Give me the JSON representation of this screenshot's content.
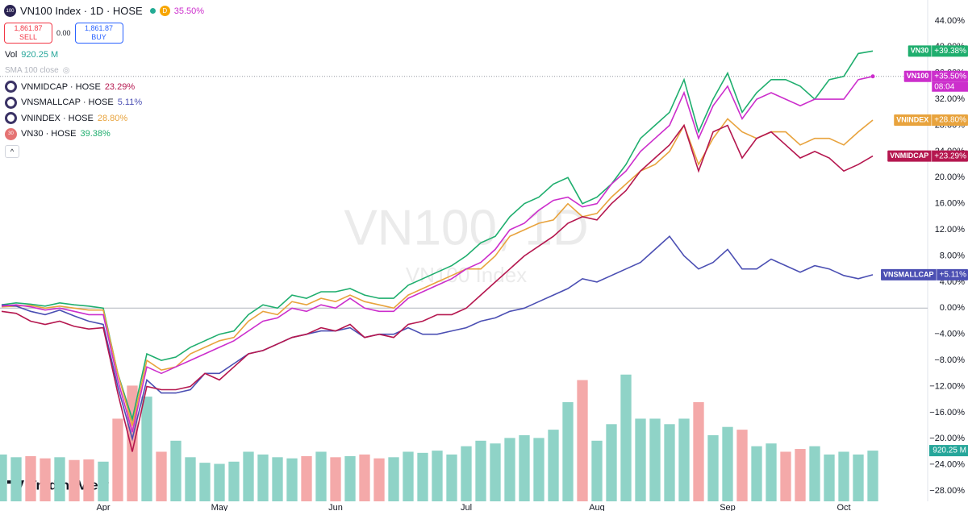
{
  "header": {
    "badge": "100",
    "symbol": "VN100 Index · 1D · HOSE",
    "interval_flag": "D",
    "change": "35.50%",
    "sell_price": "1,861.87",
    "sell": "SELL",
    "spread": "0.00",
    "buy_price": "1,861.87",
    "buy": "BUY",
    "vol_label": "Vol",
    "vol_value": "920.25 M",
    "sma": "SMA 100 close"
  },
  "watermark": {
    "title": "VN100, 1D",
    "subtitle": "VN100 Index"
  },
  "logo": "TradingView",
  "chart_data": {
    "type": "line",
    "categories": [
      null,
      null,
      null,
      null,
      null,
      null,
      null,
      "Apr",
      null,
      null,
      null,
      null,
      null,
      null,
      null,
      "May",
      null,
      null,
      null,
      null,
      null,
      null,
      null,
      "Jun",
      null,
      null,
      null,
      null,
      null,
      null,
      null,
      null,
      "Jul",
      null,
      null,
      null,
      null,
      null,
      null,
      null,
      null,
      "Aug",
      null,
      null,
      null,
      null,
      null,
      null,
      null,
      null,
      "Sep",
      null,
      null,
      null,
      null,
      null,
      null,
      null,
      "Oct",
      null,
      null
    ],
    "ylim": [
      -29.6,
      47.2
    ],
    "yticks": [
      {
        "value": -28,
        "label": "−28.00%"
      },
      {
        "value": -24,
        "label": "−24.00%"
      },
      {
        "value": -20,
        "label": "−20.00%"
      },
      {
        "value": -16,
        "label": "−16.00%"
      },
      {
        "value": -12,
        "label": "−12.00%"
      },
      {
        "value": -8,
        "label": "−8.00%"
      },
      {
        "value": -4,
        "label": "−4.00%"
      },
      {
        "value": 0,
        "label": "0.00%"
      },
      {
        "value": 4,
        "label": "4.00%"
      },
      {
        "value": 8,
        "label": "8.00%"
      },
      {
        "value": 12,
        "label": "12.00%"
      },
      {
        "value": 16,
        "label": "16.00%"
      },
      {
        "value": 20,
        "label": "20.00%"
      },
      {
        "value": 24,
        "label": "24.00%"
      },
      {
        "value": 28,
        "label": "28.00%"
      },
      {
        "value": 32,
        "label": "32.00%"
      },
      {
        "value": 36,
        "label": "36.00%"
      },
      {
        "value": 40,
        "label": "40.00%"
      },
      {
        "value": 44,
        "label": "44.00%"
      }
    ],
    "series": [
      {
        "name": "VN100",
        "color": "#cc2ecc",
        "tag_label": "+35.50%",
        "tag_time": "08:04",
        "values": [
          0.3,
          0.5,
          0.2,
          -0.3,
          0,
          -0.5,
          -1.0,
          -1.0,
          -11,
          -19,
          -9,
          -10,
          -9,
          -8,
          -7,
          -6,
          -5,
          -3.5,
          -2,
          -1.5,
          0,
          -0.5,
          0.5,
          0,
          1.5,
          0,
          -0.5,
          -0.5,
          1.5,
          2.5,
          3.5,
          4.5,
          6,
          7,
          9,
          12,
          13,
          15,
          16.5,
          17,
          15.5,
          16,
          19,
          21,
          24,
          26,
          28,
          33,
          26,
          31,
          34,
          29,
          32,
          33,
          32,
          31,
          32,
          32,
          32,
          35,
          35.5
        ]
      },
      {
        "name": "VNMIDCAP",
        "legend_label": "VNMIDCAP · HOSE",
        "value_label": "23.29%",
        "tag_label": "+23.29%",
        "color": "#b5174f",
        "values": [
          -0.5,
          -0.8,
          -2.0,
          -2.5,
          -2.0,
          -2.8,
          -3.2,
          -3.0,
          -13,
          -22,
          -12,
          -12.5,
          -12.5,
          -12,
          -10,
          -11,
          -9,
          -7,
          -6.5,
          -5.5,
          -4.5,
          -4,
          -3,
          -3.5,
          -2.5,
          -4.5,
          -4,
          -4.5,
          -2.5,
          -2,
          -1,
          -1,
          0,
          2,
          4,
          6,
          8,
          9.5,
          11,
          13,
          14,
          13.5,
          16,
          18,
          21,
          23,
          25,
          28,
          21,
          27,
          28,
          23,
          26,
          27,
          25,
          23,
          24,
          23,
          21,
          22,
          23.29
        ]
      },
      {
        "name": "VNSMALLCAP",
        "legend_label": "VNSMALLCAP · HOSE",
        "value_label": "5.11%",
        "tag_label": "+5.11%",
        "color": "#4b4fb3",
        "values": [
          0.5,
          0.3,
          -0.5,
          -1.0,
          -0.3,
          -1.2,
          -2.0,
          -2.5,
          -12,
          -20,
          -11,
          -13,
          -13,
          -12.5,
          -10,
          -10,
          -8.5,
          -7,
          -6.5,
          -5.5,
          -4.5,
          -4,
          -3.5,
          -3.5,
          -3,
          -4.5,
          -4,
          -4,
          -3,
          -4,
          -4,
          -3.5,
          -3,
          -2,
          -1.5,
          -0.5,
          0,
          1,
          2,
          3,
          4.5,
          4,
          5,
          6,
          7,
          9,
          11,
          8,
          6,
          7,
          9,
          6,
          6,
          7.5,
          6.5,
          5.5,
          6.5,
          6,
          5,
          4.5,
          5.11
        ]
      },
      {
        "name": "VNINDEX",
        "legend_label": "VNINDEX · HOSE",
        "value_label": "28.80%",
        "tag_label": "+28.80%",
        "color": "#e8a33d",
        "values": [
          0.2,
          0.3,
          0.4,
          0,
          0.3,
          0,
          -0.3,
          -0.3,
          -10,
          -18,
          -8,
          -9.5,
          -9,
          -7,
          -6,
          -5,
          -4.5,
          -2,
          -0.5,
          -1,
          1,
          0.5,
          1.5,
          1,
          2,
          1,
          0.5,
          0,
          2,
          3,
          4,
          5,
          6,
          6,
          8,
          11,
          12,
          13,
          13.5,
          16,
          14,
          14.5,
          17,
          19,
          21,
          22,
          24,
          28,
          22,
          26,
          29,
          27,
          26,
          27,
          27,
          25,
          26,
          26,
          25,
          27,
          28.8
        ]
      },
      {
        "name": "VN30",
        "legend_label": "VN30 · HOSE",
        "value_label": "39.38%",
        "tag_label": "+39.38%",
        "badge": "30",
        "color": "#1fae6e",
        "values": [
          0.5,
          0.8,
          0.6,
          0.3,
          0.8,
          0.5,
          0.3,
          0,
          -10,
          -17,
          -7,
          -8,
          -7.5,
          -6,
          -5,
          -4,
          -3.5,
          -1,
          0.5,
          0,
          2,
          1.5,
          2.5,
          2.5,
          3,
          2,
          1.5,
          1.5,
          3.5,
          4.5,
          5.5,
          6.5,
          8,
          10,
          11,
          14,
          16,
          17,
          19,
          20,
          16,
          17,
          19,
          22,
          26,
          28,
          30,
          35,
          27,
          32,
          36,
          30,
          33,
          35,
          35,
          34,
          32,
          35,
          35.5,
          39,
          39.38
        ]
      }
    ],
    "volume": {
      "ylim": [
        0,
        4300
      ],
      "up_color": "#8fd3c7",
      "down_color": "#f4a9a9",
      "tag_color": "#26a69a",
      "last_label": "920.25 M",
      "values": [
        850,
        800,
        820,
        780,
        800,
        750,
        760,
        720,
        1500,
        2100,
        1900,
        900,
        1100,
        800,
        700,
        680,
        720,
        900,
        850,
        800,
        780,
        820,
        900,
        800,
        820,
        850,
        780,
        800,
        900,
        880,
        920,
        850,
        1000,
        1100,
        1050,
        1150,
        1200,
        1150,
        1300,
        1800,
        2200,
        1100,
        1400,
        2300,
        1500,
        1500,
        1400,
        1500,
        1800,
        1200,
        1350,
        1300,
        1000,
        1050,
        900,
        950,
        1000,
        850,
        900,
        850,
        920.25
      ]
    }
  }
}
